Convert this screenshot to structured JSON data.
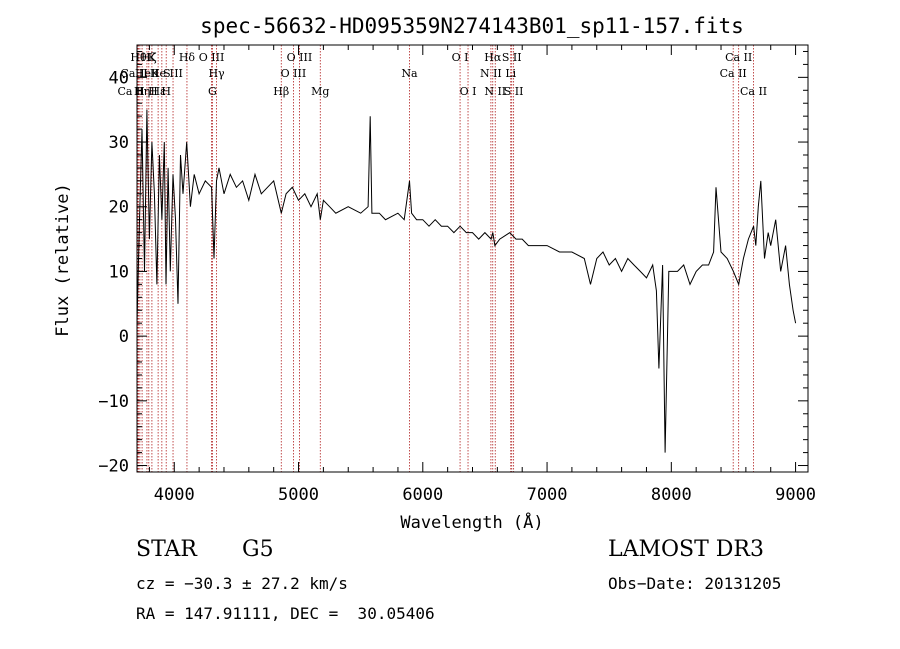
{
  "chart_data": {
    "type": "line",
    "title": "spec-56632-HD095359N274143B01_sp11-157.fits",
    "xlabel": "Wavelength (Å)",
    "ylabel": "Flux (relative)",
    "xlim": [
      3700,
      9100
    ],
    "ylim": [
      -21,
      45
    ],
    "xticks": [
      4000,
      5000,
      6000,
      7000,
      8000,
      9000
    ],
    "yticks": [
      -20,
      -10,
      0,
      10,
      20,
      30,
      40
    ],
    "x_minor_step": 200,
    "y_minor_step": 2,
    "grid": false,
    "series": [
      {
        "x": [
          3700,
          3720,
          3740,
          3760,
          3780,
          3800,
          3820,
          3840,
          3860,
          3880,
          3900,
          3920,
          3933,
          3950,
          3968,
          3990,
          4010,
          4030,
          4050,
          4070,
          4100,
          4130,
          4160,
          4200,
          4250,
          4300,
          4320,
          4340,
          4360,
          4400,
          4450,
          4500,
          4550,
          4600,
          4650,
          4700,
          4750,
          4800,
          4861,
          4900,
          4950,
          5000,
          5050,
          5100,
          5150,
          5175,
          5200,
          5250,
          5300,
          5400,
          5500,
          5560,
          5577,
          5590,
          5650,
          5700,
          5800,
          5850,
          5893,
          5910,
          5950,
          6000,
          6050,
          6100,
          6150,
          6200,
          6250,
          6300,
          6350,
          6400,
          6450,
          6500,
          6550,
          6563,
          6580,
          6620,
          6700,
          6750,
          6800,
          6850,
          6900,
          7000,
          7100,
          7200,
          7300,
          7350,
          7400,
          7450,
          7500,
          7550,
          7600,
          7650,
          7700,
          7750,
          7800,
          7850,
          7880,
          7900,
          7930,
          7950,
          7980,
          8000,
          8050,
          8100,
          8150,
          8200,
          8250,
          8300,
          8340,
          8360,
          8400,
          8450,
          8500,
          8542,
          8580,
          8620,
          8662,
          8680,
          8700,
          8720,
          8750,
          8780,
          8800,
          8840,
          8880,
          8920,
          8950,
          8980,
          9000
        ],
        "y": [
          2,
          18,
          32,
          10,
          35,
          15,
          30,
          22,
          8,
          28,
          18,
          30,
          8,
          26,
          10,
          25,
          18,
          5,
          28,
          22,
          30,
          20,
          25,
          22,
          24,
          23,
          12,
          24,
          26,
          22,
          25,
          23,
          24,
          21,
          25,
          22,
          23,
          24,
          19,
          22,
          23,
          21,
          22,
          20,
          22,
          18,
          21,
          20,
          19,
          20,
          19,
          20,
          34,
          19,
          19,
          18,
          19,
          18,
          24,
          19,
          18,
          18,
          17,
          18,
          17,
          17,
          16,
          17,
          16,
          16,
          15,
          16,
          15,
          16,
          14,
          15,
          16,
          15,
          15,
          14,
          14,
          14,
          13,
          13,
          12,
          8,
          12,
          13,
          11,
          12,
          10,
          12,
          11,
          10,
          9,
          11,
          7,
          -5,
          11,
          -18,
          10,
          10,
          10,
          11,
          8,
          10,
          11,
          11,
          13,
          23,
          13,
          12,
          10,
          8,
          12,
          15,
          17,
          14,
          20,
          24,
          12,
          16,
          14,
          18,
          10,
          14,
          8,
          4,
          2
        ]
      }
    ],
    "line_markers": [
      {
        "label": "Ca II H",
        "x": 3705,
        "row": 3
      },
      {
        "label": "Hθ",
        "x": 3712,
        "row": 1
      },
      {
        "label": "Ca II K",
        "x": 3723,
        "row": 2
      },
      {
        "label": "Hη",
        "x": 3741,
        "row": 3
      },
      {
        "label": "He I",
        "x": 3780,
        "row": 2
      },
      {
        "label": "Hζ",
        "x": 3795,
        "row": 1
      },
      {
        "label": "K",
        "x": 3820,
        "row": 1
      },
      {
        "label": "Hε",
        "x": 3870,
        "row": 3
      },
      {
        "label": "He I",
        "x": 3900,
        "row": 2
      },
      {
        "label": "H",
        "x": 3935,
        "row": 3
      },
      {
        "label": "S II",
        "x": 3990,
        "row": 2
      },
      {
        "label": "Hδ",
        "x": 4102,
        "row": 1
      },
      {
        "label": "O III",
        "x": 4300,
        "row": 1
      },
      {
        "label": "Hγ",
        "x": 4340,
        "row": 2
      },
      {
        "label": "G",
        "x": 4307,
        "row": 3
      },
      {
        "label": "Hβ",
        "x": 4861,
        "row": 3
      },
      {
        "label": "O III",
        "x": 4959,
        "row": 2
      },
      {
        "label": "O III",
        "x": 5007,
        "row": 1
      },
      {
        "label": "Mg",
        "x": 5175,
        "row": 3
      },
      {
        "label": "Na",
        "x": 5893,
        "row": 2
      },
      {
        "label": "O I",
        "x": 6300,
        "row": 1
      },
      {
        "label": "O I",
        "x": 6364,
        "row": 3
      },
      {
        "label": "Hα",
        "x": 6563,
        "row": 1
      },
      {
        "label": "N II",
        "x": 6548,
        "row": 2
      },
      {
        "label": "N II",
        "x": 6583,
        "row": 3
      },
      {
        "label": "S II",
        "x": 6716,
        "row": 1
      },
      {
        "label": "Li",
        "x": 6708,
        "row": 2
      },
      {
        "label": "S II",
        "x": 6731,
        "row": 3
      },
      {
        "label": "Ca II",
        "x": 8498,
        "row": 2
      },
      {
        "label": "Ca II",
        "x": 8542,
        "row": 1
      },
      {
        "label": "Ca II",
        "x": 8662,
        "row": 3
      }
    ]
  },
  "info": {
    "class": "STAR",
    "subclass": "G5",
    "survey": "LAMOST DR3",
    "cz": "cz = −30.3 ± 27.2 km/s",
    "obs_date": "Obs−Date: 20131205",
    "radec": "RA = 147.91111, DEC =  30.05406"
  }
}
